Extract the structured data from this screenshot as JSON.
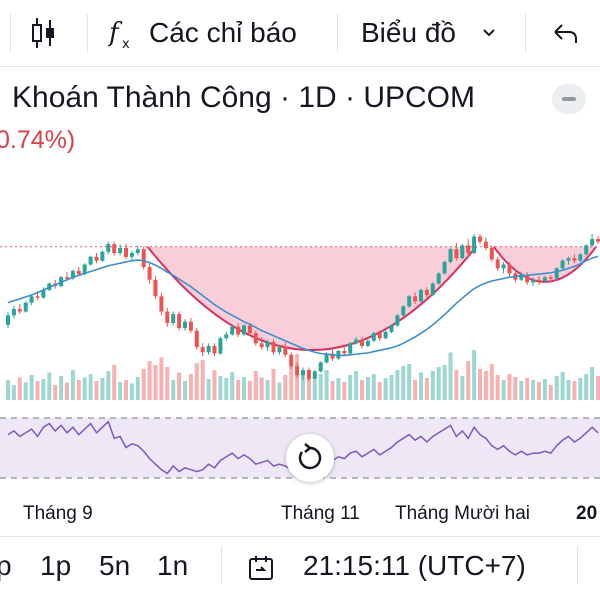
{
  "toolbar": {
    "candles_icon": "candlestick-icon",
    "indicators_icon": "fx-icon",
    "indicators_label": "Các chỉ báo",
    "chart_label": "Biểu đồ",
    "chart_dropdown_icon": "chevron-down-icon",
    "undo_icon": "undo-icon"
  },
  "header": {
    "title": "Khoán Thành Công · 1D · UPCOM",
    "change": "0.74%)",
    "collapse_icon": "minus-icon"
  },
  "colors": {
    "up": "#26a69a",
    "down": "#ef5350",
    "ma": "#3d8ecf",
    "pattern_fill": "#f6b9c9",
    "pattern_line": "#d7325f",
    "rsi_line": "#7e57c2",
    "rsi_band": "#ede7f6",
    "price_line": "#e56b7a"
  },
  "chart_data": {
    "type": "candlestick",
    "candles": [
      [
        23.5,
        25.5,
        23.0,
        25.0
      ],
      [
        25.0,
        26.5,
        24.5,
        26.0
      ],
      [
        26.0,
        26.8,
        25.2,
        25.6
      ],
      [
        25.6,
        27.2,
        25.4,
        27.0
      ],
      [
        27.0,
        28.3,
        26.6,
        28.0
      ],
      [
        28.0,
        28.8,
        27.4,
        27.8
      ],
      [
        27.8,
        29.4,
        27.6,
        29.0
      ],
      [
        29.0,
        30.2,
        28.8,
        30.0
      ],
      [
        30.0,
        30.6,
        29.2,
        29.6
      ],
      [
        29.6,
        31.2,
        29.4,
        31.0
      ],
      [
        31.0,
        31.8,
        30.4,
        30.8
      ],
      [
        30.8,
        32.2,
        30.6,
        32.0
      ],
      [
        32.0,
        32.6,
        31.2,
        31.5
      ],
      [
        31.5,
        33.2,
        31.3,
        33.0
      ],
      [
        33.0,
        34.4,
        32.8,
        34.2
      ],
      [
        34.2,
        34.8,
        33.2,
        33.6
      ],
      [
        33.6,
        35.2,
        33.4,
        35.0
      ],
      [
        35.0,
        36.6,
        34.6,
        36.2
      ],
      [
        36.2,
        36.6,
        34.4,
        34.8
      ],
      [
        34.8,
        36.2,
        34.4,
        35.6
      ],
      [
        35.6,
        36.2,
        33.8,
        34.2
      ],
      [
        34.2,
        35.2,
        33.6,
        34.8
      ],
      [
        34.8,
        36.0,
        34.4,
        35.4
      ],
      [
        35.4,
        35.8,
        32.2,
        32.6
      ],
      [
        32.6,
        33.2,
        30.0,
        30.6
      ],
      [
        30.6,
        31.2,
        27.6,
        28.0
      ],
      [
        28.0,
        28.6,
        25.0,
        25.6
      ],
      [
        25.6,
        26.2,
        23.2,
        23.8
      ],
      [
        23.8,
        25.6,
        23.4,
        25.2
      ],
      [
        25.2,
        25.6,
        22.6,
        23.0
      ],
      [
        23.0,
        24.4,
        22.6,
        24.0
      ],
      [
        24.0,
        24.6,
        22.2,
        22.6
      ],
      [
        22.6,
        23.0,
        19.6,
        20.0
      ],
      [
        20.0,
        20.6,
        18.6,
        19.2
      ],
      [
        19.2,
        20.6,
        18.8,
        20.2
      ],
      [
        20.2,
        20.6,
        18.6,
        19.0
      ],
      [
        19.0,
        21.6,
        18.8,
        21.4
      ],
      [
        21.4,
        22.4,
        21.0,
        22.0
      ],
      [
        22.0,
        23.6,
        21.8,
        23.2
      ],
      [
        23.2,
        23.8,
        21.6,
        22.0
      ],
      [
        22.0,
        23.6,
        21.8,
        23.4
      ],
      [
        23.4,
        23.8,
        21.8,
        22.2
      ],
      [
        22.2,
        22.6,
        20.2,
        20.6
      ],
      [
        20.6,
        21.6,
        19.6,
        20.0
      ],
      [
        20.0,
        21.2,
        19.4,
        20.8
      ],
      [
        20.8,
        21.2,
        18.8,
        19.2
      ],
      [
        19.2,
        20.4,
        18.8,
        20.0
      ],
      [
        20.0,
        20.8,
        18.4,
        18.8
      ],
      [
        18.8,
        19.2,
        16.6,
        17.0
      ],
      [
        17.0,
        17.6,
        15.2,
        15.6
      ],
      [
        15.6,
        16.8,
        14.8,
        16.4
      ],
      [
        16.4,
        16.8,
        14.6,
        15.0
      ],
      [
        15.0,
        16.4,
        14.8,
        16.2
      ],
      [
        16.2,
        17.8,
        16.0,
        17.6
      ],
      [
        17.6,
        19.2,
        17.4,
        19.0
      ],
      [
        19.0,
        19.6,
        17.8,
        18.2
      ],
      [
        18.2,
        19.6,
        18.0,
        19.4
      ],
      [
        19.4,
        20.2,
        18.6,
        19.0
      ],
      [
        19.0,
        20.8,
        18.8,
        20.6
      ],
      [
        20.6,
        21.6,
        20.4,
        21.2
      ],
      [
        21.2,
        21.6,
        19.8,
        20.2
      ],
      [
        20.2,
        21.4,
        20.0,
        21.0
      ],
      [
        21.0,
        22.4,
        20.8,
        22.2
      ],
      [
        22.2,
        22.6,
        21.0,
        21.4
      ],
      [
        21.4,
        22.6,
        21.2,
        22.4
      ],
      [
        22.4,
        23.6,
        22.2,
        23.4
      ],
      [
        23.4,
        25.2,
        23.2,
        25.0
      ],
      [
        25.0,
        26.6,
        24.8,
        26.4
      ],
      [
        26.4,
        28.2,
        26.2,
        28.0
      ],
      [
        28.0,
        28.6,
        26.8,
        27.2
      ],
      [
        27.2,
        29.2,
        27.0,
        29.0
      ],
      [
        29.0,
        29.4,
        27.8,
        28.2
      ],
      [
        28.2,
        30.2,
        28.0,
        30.0
      ],
      [
        30.0,
        31.8,
        29.8,
        31.6
      ],
      [
        31.6,
        33.6,
        31.4,
        33.4
      ],
      [
        33.4,
        35.6,
        33.2,
        35.4
      ],
      [
        35.4,
        36.4,
        33.6,
        34.0
      ],
      [
        34.0,
        36.2,
        33.8,
        36.0
      ],
      [
        36.0,
        37.0,
        34.4,
        34.8
      ],
      [
        34.8,
        37.8,
        34.6,
        37.4
      ],
      [
        37.4,
        37.8,
        36.2,
        36.6
      ],
      [
        36.6,
        37.2,
        35.2,
        35.6
      ],
      [
        35.6,
        36.0,
        33.4,
        33.8
      ],
      [
        33.8,
        34.2,
        32.0,
        32.4
      ],
      [
        32.4,
        33.4,
        31.6,
        33.0
      ],
      [
        33.0,
        33.4,
        31.2,
        31.6
      ],
      [
        31.6,
        32.2,
        30.2,
        30.6
      ],
      [
        30.6,
        31.8,
        30.4,
        31.4
      ],
      [
        31.4,
        31.8,
        29.8,
        30.2
      ],
      [
        30.2,
        31.0,
        29.6,
        30.6
      ],
      [
        30.6,
        31.2,
        29.8,
        30.4
      ],
      [
        30.4,
        31.2,
        30.2,
        31.0
      ],
      [
        31.0,
        31.4,
        30.2,
        30.8
      ],
      [
        30.8,
        32.6,
        30.6,
        32.4
      ],
      [
        32.4,
        33.8,
        32.2,
        33.6
      ],
      [
        33.6,
        34.2,
        33.0,
        34.0
      ],
      [
        34.0,
        34.6,
        33.2,
        33.6
      ],
      [
        33.6,
        34.8,
        33.4,
        34.6
      ],
      [
        34.6,
        36.2,
        34.4,
        36.0
      ],
      [
        36.0,
        37.8,
        35.8,
        37.0
      ],
      [
        37.0,
        37.4,
        36.2,
        36.6
      ]
    ],
    "ma": [
      27.0,
      27.3,
      27.6,
      27.9,
      28.2,
      28.6,
      29.0,
      29.4,
      29.8,
      30.2,
      30.6,
      31.0,
      31.3,
      31.6,
      31.9,
      32.2,
      32.5,
      32.8,
      33.0,
      33.2,
      33.4,
      33.6,
      33.7,
      33.6,
      33.3,
      32.9,
      32.4,
      31.8,
      31.3,
      30.7,
      30.1,
      29.5,
      28.8,
      28.1,
      27.4,
      26.7,
      26.1,
      25.5,
      25.0,
      24.5,
      24.0,
      23.6,
      23.1,
      22.6,
      22.2,
      21.8,
      21.4,
      21.0,
      20.6,
      20.2,
      19.8,
      19.5,
      19.2,
      19.0,
      18.9,
      18.8,
      18.7,
      18.7,
      18.8,
      18.9,
      19.0,
      19.1,
      19.3,
      19.5,
      19.7,
      19.9,
      20.2,
      20.6,
      21.1,
      21.6,
      22.2,
      22.8,
      23.5,
      24.3,
      25.1,
      26.0,
      26.9,
      27.7,
      28.5,
      29.2,
      29.7,
      30.1,
      30.4,
      30.6,
      30.8,
      31.0,
      31.1,
      31.2,
      31.3,
      31.4,
      31.5,
      31.6,
      31.7,
      31.9,
      32.1,
      32.4,
      32.7,
      33.1,
      33.6,
      34.0,
      34.3
    ],
    "volume": [
      40,
      30,
      45,
      35,
      50,
      38,
      42,
      55,
      30,
      48,
      35,
      60,
      40,
      45,
      52,
      38,
      44,
      58,
      70,
      36,
      40,
      33,
      46,
      62,
      78,
      70,
      85,
      66,
      40,
      55,
      38,
      52,
      74,
      80,
      42,
      60,
      48,
      44,
      56,
      40,
      46,
      38,
      58,
      45,
      40,
      62,
      35,
      50,
      70,
      92,
      55,
      48,
      40,
      52,
      60,
      38,
      44,
      36,
      50,
      58,
      40,
      46,
      52,
      36,
      44,
      50,
      60,
      68,
      72,
      40,
      55,
      44,
      58,
      66,
      70,
      95,
      60,
      48,
      78,
      100,
      62,
      58,
      72,
      50,
      40,
      52,
      46,
      38,
      44,
      40,
      36,
      42,
      30,
      48,
      56,
      40,
      38,
      44,
      52,
      66,
      48
    ],
    "rsi": [
      62,
      66,
      60,
      64,
      68,
      60,
      70,
      74,
      66,
      72,
      64,
      70,
      62,
      68,
      74,
      64,
      70,
      76,
      58,
      60,
      48,
      52,
      50,
      44,
      36,
      30,
      24,
      20,
      28,
      22,
      26,
      24,
      22,
      24,
      30,
      26,
      34,
      38,
      42,
      36,
      40,
      36,
      30,
      32,
      34,
      28,
      30,
      28,
      24,
      22,
      28,
      26,
      30,
      34,
      38,
      34,
      38,
      36,
      42,
      44,
      38,
      42,
      46,
      40,
      44,
      48,
      54,
      58,
      62,
      56,
      60,
      54,
      60,
      64,
      68,
      72,
      60,
      66,
      58,
      70,
      62,
      58,
      50,
      46,
      50,
      44,
      40,
      44,
      40,
      42,
      42,
      44,
      42,
      50,
      56,
      60,
      54,
      58,
      64,
      70,
      64
    ],
    "ylim": [
      12,
      40
    ],
    "resistance": 35.8,
    "x_labels": [
      "Tháng 9",
      "Tháng 11",
      "Tháng Mười hai",
      "20"
    ]
  },
  "bottombar": {
    "periods": [
      "p",
      "1p",
      "5n",
      "1n"
    ],
    "goto_icon": "goto-date-icon",
    "time": "21:15:11 (UTC+7)",
    "reset_icon": "reset-icon"
  }
}
